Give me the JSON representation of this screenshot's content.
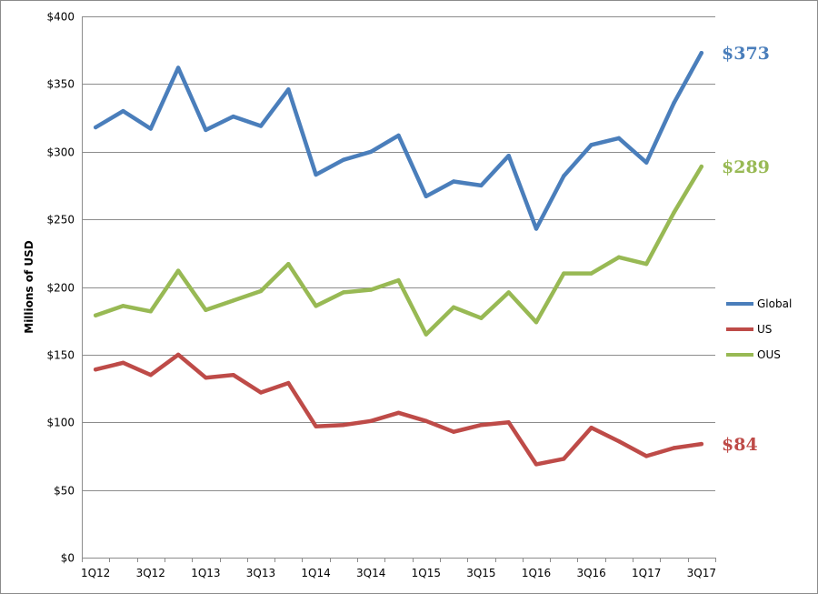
{
  "chart_data": {
    "type": "line",
    "ylabel": "Millions of USD",
    "ylim": [
      0,
      400
    ],
    "y_ticks": [
      0,
      50,
      100,
      150,
      200,
      250,
      300,
      350,
      400
    ],
    "y_tick_labels": [
      "$0",
      "$50",
      "$100",
      "$150",
      "$200",
      "$250",
      "$300",
      "$350",
      "$400"
    ],
    "x": [
      "1Q12",
      "2Q12",
      "3Q12",
      "4Q12",
      "1Q13",
      "2Q13",
      "3Q13",
      "4Q13",
      "1Q14",
      "2Q14",
      "3Q14",
      "4Q14",
      "1Q15",
      "2Q15",
      "3Q15",
      "4Q15",
      "1Q16",
      "2Q16",
      "3Q16",
      "4Q16",
      "1Q17",
      "2Q17",
      "3Q17"
    ],
    "x_tick_labels": [
      "1Q12",
      "3Q12",
      "1Q13",
      "3Q13",
      "1Q14",
      "3Q14",
      "1Q15",
      "3Q15",
      "1Q16",
      "3Q16",
      "1Q17",
      "3Q17"
    ],
    "grid": true,
    "legend_position": "right",
    "series": [
      {
        "name": "Global",
        "color": "#4a7ebb",
        "end_label": "$373",
        "values": [
          318,
          330,
          317,
          362,
          316,
          326,
          319,
          346,
          283,
          294,
          300,
          312,
          267,
          278,
          275,
          297,
          243,
          282,
          305,
          310,
          292,
          336,
          373
        ]
      },
      {
        "name": "US",
        "color": "#be4b48",
        "end_label": "$84",
        "values": [
          139,
          144,
          135,
          150,
          133,
          135,
          122,
          129,
          97,
          98,
          101,
          107,
          101,
          93,
          98,
          100,
          69,
          73,
          96,
          86,
          75,
          81,
          84
        ]
      },
      {
        "name": "OUS",
        "color": "#98b954",
        "end_label": "$289",
        "values": [
          179,
          186,
          182,
          212,
          183,
          190,
          197,
          217,
          186,
          196,
          198,
          205,
          165,
          185,
          177,
          196,
          174,
          210,
          210,
          222,
          217,
          255,
          289
        ]
      }
    ]
  }
}
